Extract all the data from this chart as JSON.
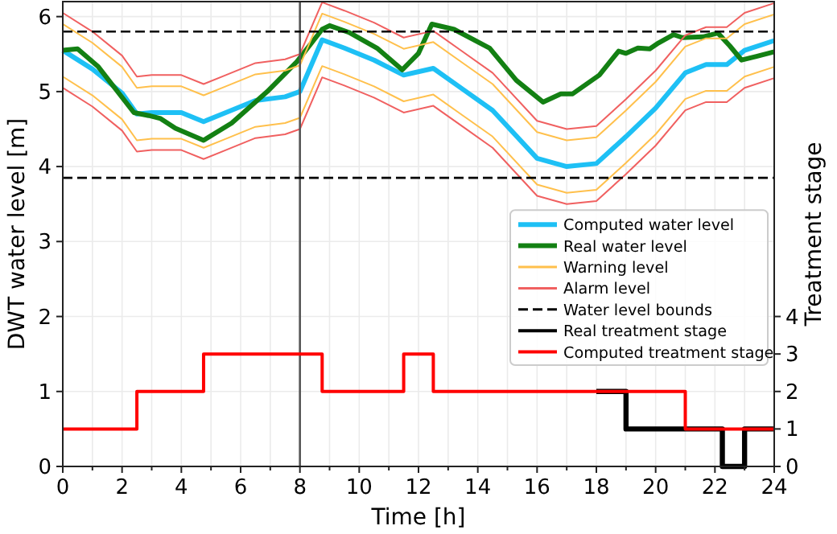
{
  "chart_data": {
    "type": "line",
    "xlabel": "Time [h]",
    "ylabel": "DWT water level [m]",
    "y2label": "Treatment stage",
    "xlim": [
      0,
      24
    ],
    "xticks": [
      0,
      {
        "value": 1,
        "label": null
      },
      2,
      {
        "value": 3,
        "label": null
      },
      4,
      {
        "value": 5,
        "label": null
      },
      6,
      {
        "value": 7,
        "label": null
      },
      8,
      {
        "value": 9,
        "label": null
      },
      10,
      {
        "value": 11,
        "label": null
      },
      12,
      {
        "value": 13,
        "label": null
      },
      14,
      {
        "value": 15,
        "label": null
      },
      16,
      {
        "value": 17,
        "label": null
      },
      18,
      {
        "value": 19,
        "label": null
      },
      20,
      {
        "value": 21,
        "label": null
      },
      22,
      {
        "value": 23,
        "label": null
      },
      24
    ],
    "ylim": [
      0,
      6.2
    ],
    "yticks": [
      0,
      1,
      2,
      3,
      4,
      5,
      6
    ],
    "y2lim": [
      0,
      12.4
    ],
    "y2ticks": [
      0,
      1,
      2,
      3,
      4
    ],
    "grid": true,
    "legend": "bottom right",
    "line_style": "solid",
    "ref_lines": [
      {
        "axis": "x",
        "value": 8,
        "color": "#555555",
        "line_style": "solid"
      },
      {
        "axis": "y",
        "value": 5.8,
        "color": "#000000",
        "line_style": "dashed",
        "label": "Water level bounds"
      },
      {
        "axis": "y",
        "value": 3.85,
        "color": "#000000",
        "line_style": "dashed"
      }
    ],
    "x": [
      0,
      1,
      2,
      2.5,
      3,
      4,
      4.75,
      5.5,
      6.5,
      7.5,
      8,
      8.75,
      9.5,
      10.5,
      11.5,
      12.5,
      13.5,
      14.5,
      16,
      17,
      18,
      19,
      20,
      21,
      21.7,
      22.4,
      23,
      24
    ],
    "series": [
      {
        "name": "Computed water level",
        "color": "#1ec0f5",
        "values": [
          5.55,
          5.3,
          4.98,
          4.7,
          4.72,
          4.72,
          4.6,
          4.72,
          4.88,
          4.93,
          5.0,
          5.69,
          5.58,
          5.42,
          5.22,
          5.31,
          5.03,
          4.75,
          4.11,
          4.0,
          4.04,
          4.4,
          4.78,
          5.25,
          5.36,
          5.36,
          5.55,
          5.68
        ]
      },
      {
        "name": "Real water level",
        "color": "#138013",
        "x": [
          0,
          0.5,
          1.2,
          2.4,
          2.9,
          3.3,
          3.8,
          4.75,
          5.7,
          6.9,
          7.9,
          8.75,
          9.0,
          9.65,
          10.6,
          11.45,
          12.0,
          12.45,
          13.2,
          14.4,
          15.3,
          16.2,
          16.8,
          17.2,
          18.1,
          18.75,
          19.0,
          19.4,
          19.8,
          20.1,
          20.6,
          20.9,
          21.6,
          22.1,
          22.5,
          22.9,
          23.4,
          24
        ],
        "values": [
          5.55,
          5.57,
          5.33,
          4.72,
          4.68,
          4.64,
          4.51,
          4.35,
          4.58,
          5.0,
          5.4,
          5.83,
          5.88,
          5.79,
          5.58,
          5.29,
          5.51,
          5.9,
          5.83,
          5.58,
          5.15,
          4.86,
          4.97,
          4.97,
          5.22,
          5.54,
          5.51,
          5.58,
          5.57,
          5.65,
          5.76,
          5.72,
          5.73,
          5.78,
          5.61,
          5.42,
          5.47,
          5.53
        ]
      },
      {
        "name": "Warning level",
        "color": "#ffc04c",
        "values": [
          5.9,
          5.65,
          5.33,
          5.05,
          5.07,
          5.07,
          4.95,
          5.07,
          5.23,
          5.28,
          5.35,
          6.04,
          5.93,
          5.77,
          5.57,
          5.66,
          5.38,
          5.1,
          4.46,
          4.35,
          4.39,
          4.75,
          5.13,
          5.6,
          5.71,
          5.71,
          5.9,
          6.03
        ]
      },
      {
        "name": "Alarm level",
        "color": "#f06060",
        "values": [
          6.05,
          5.8,
          5.48,
          5.2,
          5.22,
          5.22,
          5.1,
          5.22,
          5.38,
          5.43,
          5.5,
          6.19,
          6.08,
          5.92,
          5.72,
          5.81,
          5.53,
          5.25,
          4.61,
          4.5,
          4.54,
          4.9,
          5.28,
          5.75,
          5.86,
          5.86,
          6.05,
          6.18
        ]
      },
      {
        "color": "#ffc04c",
        "values": [
          5.2,
          4.95,
          4.63,
          4.35,
          4.37,
          4.37,
          4.25,
          4.37,
          4.53,
          4.58,
          4.65,
          5.34,
          5.23,
          5.07,
          4.87,
          4.96,
          4.68,
          4.4,
          3.76,
          3.65,
          3.69,
          4.05,
          4.43,
          4.9,
          5.01,
          5.01,
          5.2,
          5.33
        ]
      },
      {
        "color": "#f06060",
        "values": [
          5.05,
          4.8,
          4.48,
          4.2,
          4.22,
          4.22,
          4.1,
          4.22,
          4.38,
          4.43,
          4.5,
          5.19,
          5.08,
          4.92,
          4.72,
          4.81,
          4.53,
          4.25,
          3.61,
          3.5,
          3.54,
          3.9,
          4.28,
          4.75,
          4.86,
          4.86,
          5.05,
          5.18
        ]
      },
      {
        "name": "Real treatment stage",
        "type": "step",
        "axis": "y2",
        "color": "#000000",
        "x": [
          18,
          19,
          22.25,
          23,
          24
        ],
        "values": [
          2,
          1,
          0,
          1,
          1
        ]
      },
      {
        "name": "Computed treatment stage",
        "type": "step",
        "axis": "y2",
        "color": "#ff0000",
        "x": [
          0,
          2.5,
          4.75,
          8.75,
          11.5,
          12.5,
          21,
          24
        ],
        "values": [
          1,
          2,
          3,
          2,
          3,
          2,
          1,
          1
        ]
      }
    ]
  }
}
